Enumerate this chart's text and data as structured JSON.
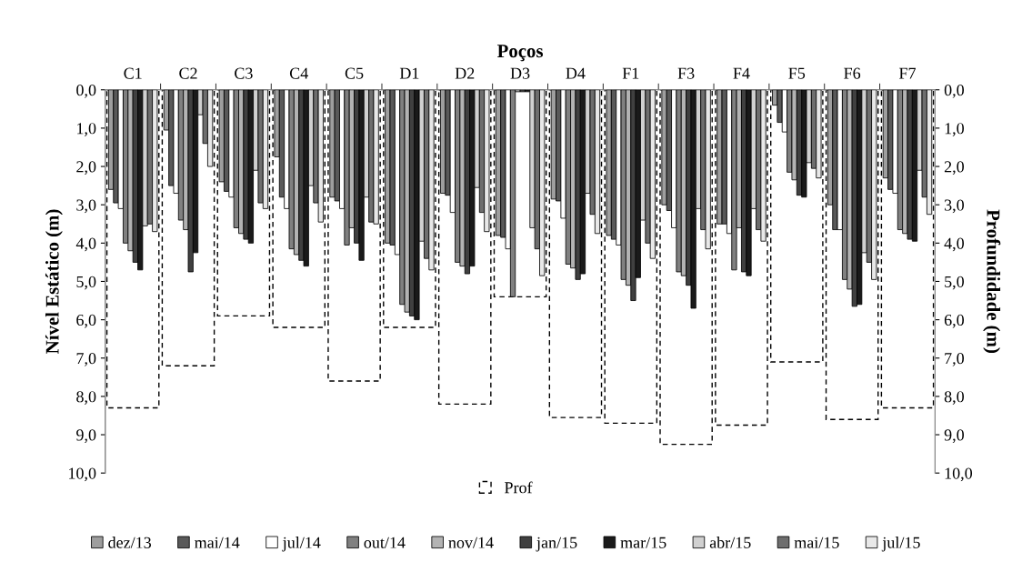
{
  "chart_data": {
    "type": "bar",
    "xlabel": "Poços",
    "ylabel": "Nível Estático (m)",
    "y2label": "Profundidade (m)",
    "categories": [
      "C1",
      "C2",
      "C3",
      "C4",
      "C5",
      "D1",
      "D2",
      "D3",
      "D4",
      "F1",
      "F3",
      "F4",
      "F5",
      "F6",
      "F7"
    ],
    "series": [
      {
        "name": "dez/13",
        "color": "#9e9e9e",
        "values": [
          2.6,
          1.05,
          2.4,
          1.75,
          2.8,
          4.0,
          2.7,
          3.8,
          2.85,
          3.8,
          3.0,
          3.5,
          0.4,
          3.0,
          2.3
        ]
      },
      {
        "name": "mai/14",
        "color": "#595959",
        "values": [
          2.95,
          2.5,
          2.65,
          2.8,
          2.9,
          4.05,
          2.75,
          3.85,
          2.9,
          3.9,
          3.15,
          3.5,
          0.85,
          3.65,
          2.6
        ]
      },
      {
        "name": "jul/14",
        "color": "#ffffff",
        "values": [
          3.1,
          2.7,
          2.8,
          3.1,
          3.1,
          4.3,
          3.2,
          4.15,
          3.35,
          4.05,
          3.6,
          3.75,
          1.1,
          3.65,
          2.7
        ]
      },
      {
        "name": "out/14",
        "color": "#808080",
        "values": [
          4.0,
          3.4,
          3.6,
          4.15,
          4.05,
          5.6,
          4.5,
          5.4,
          4.55,
          4.95,
          4.75,
          4.7,
          2.15,
          4.95,
          3.65
        ]
      },
      {
        "name": "nov/14",
        "color": "#b3b3b3",
        "values": [
          4.2,
          3.65,
          3.75,
          4.3,
          3.6,
          5.8,
          4.6,
          0.05,
          4.65,
          5.1,
          4.85,
          3.6,
          2.35,
          5.2,
          3.75
        ]
      },
      {
        "name": "jan/15",
        "color": "#404040",
        "values": [
          4.5,
          4.75,
          3.9,
          4.45,
          4.0,
          5.9,
          4.8,
          0.05,
          4.95,
          5.5,
          5.1,
          4.75,
          2.75,
          5.65,
          3.9
        ]
      },
      {
        "name": "mar/15",
        "color": "#1a1a1a",
        "values": [
          4.7,
          4.25,
          4.0,
          4.6,
          4.45,
          6.0,
          4.6,
          0.05,
          4.8,
          4.9,
          5.7,
          4.85,
          2.8,
          5.6,
          3.95
        ]
      },
      {
        "name": "abr/15",
        "color": "#d0d0d0",
        "values": [
          3.55,
          0.65,
          2.1,
          2.5,
          2.8,
          3.95,
          2.55,
          3.6,
          2.7,
          3.4,
          3.1,
          3.1,
          1.9,
          4.25,
          2.1
        ]
      },
      {
        "name": "mai/15",
        "color": "#6e6e6e",
        "values": [
          3.5,
          1.4,
          2.95,
          2.95,
          3.45,
          4.4,
          3.2,
          4.15,
          3.25,
          4.0,
          3.65,
          3.65,
          2.05,
          4.5,
          2.8
        ]
      },
      {
        "name": "jul/15",
        "color": "#e8e8e8",
        "values": [
          3.7,
          2.0,
          3.1,
          3.45,
          3.5,
          4.7,
          3.7,
          4.85,
          3.75,
          4.4,
          4.15,
          3.95,
          2.3,
          4.95,
          3.25
        ]
      },
      {
        "name": "Prof",
        "color": "#000000",
        "axis": "y2",
        "line_style": "dashed",
        "values": [
          8.3,
          7.2,
          5.9,
          6.2,
          7.6,
          6.2,
          8.2,
          5.4,
          8.55,
          8.7,
          9.25,
          8.75,
          7.1,
          8.6,
          8.3
        ]
      }
    ],
    "ylim": [
      10,
      0
    ],
    "y2lim": [
      10,
      0
    ],
    "yticks": [
      {
        "value": 0,
        "label": "0,0"
      },
      {
        "value": 1,
        "label": "1,0"
      },
      {
        "value": 2,
        "label": "2,0"
      },
      {
        "value": 3,
        "label": "3,0"
      },
      {
        "value": 4,
        "label": "4,0"
      },
      {
        "value": 5,
        "label": "5,0"
      },
      {
        "value": 6,
        "label": "6,0"
      },
      {
        "value": 7,
        "label": "7,0"
      },
      {
        "value": 8,
        "label": "8,0"
      },
      {
        "value": 9,
        "label": "9,0"
      },
      {
        "value": 10,
        "label": "10,0"
      }
    ],
    "y2ticks": [
      {
        "value": 0,
        "label": "0,0"
      },
      {
        "value": 1,
        "label": "1,0"
      },
      {
        "value": 2,
        "label": "2,0"
      },
      {
        "value": 3,
        "label": "3,0"
      },
      {
        "value": 4,
        "label": "4,0"
      },
      {
        "value": 5,
        "label": "5,0"
      },
      {
        "value": 6,
        "label": "6,0"
      },
      {
        "value": 7,
        "label": "7,0"
      },
      {
        "value": 8,
        "label": "8,0"
      },
      {
        "value": 9,
        "label": "9,0"
      },
      {
        "value": 10,
        "label": "10,0"
      }
    ],
    "grid": false,
    "legend": "bottom"
  }
}
